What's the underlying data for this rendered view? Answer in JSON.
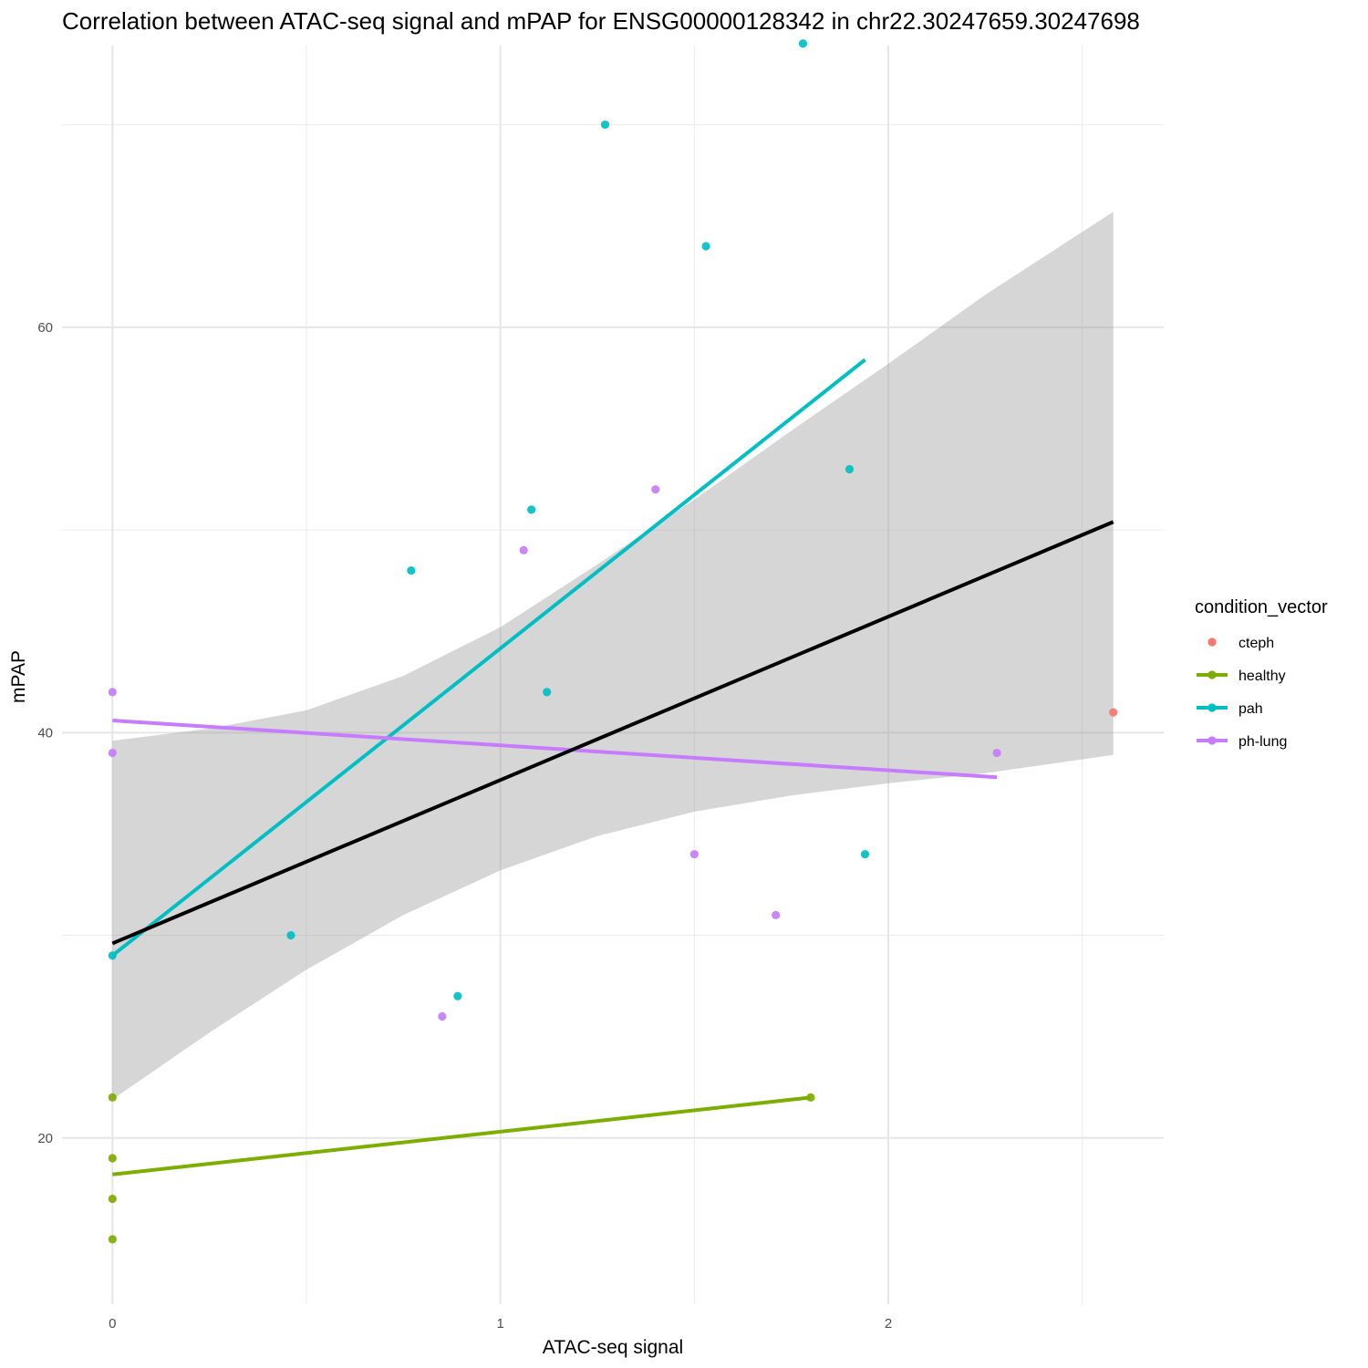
{
  "chart_data": {
    "type": "scatter",
    "title": "Correlation between ATAC-seq signal and mPAP for ENSG00000128342 in chr22.30247659.30247698",
    "xlabel": "ATAC-seq signal",
    "ylabel": "mPAP",
    "xlim": [
      -0.13,
      2.71
    ],
    "ylim": [
      11.8,
      73.9
    ],
    "x_ticks": [
      0,
      1,
      2
    ],
    "x_tick_labels": [
      "0",
      "1",
      "2"
    ],
    "x_minor_grid": [
      0.5,
      1.5,
      2.5
    ],
    "y_ticks": [
      20,
      40,
      60
    ],
    "y_tick_labels": [
      "20",
      "40",
      "60"
    ],
    "y_minor_grid": [
      30,
      50,
      70
    ],
    "grid": true,
    "legend": {
      "title": "condition_vector",
      "placement": "right",
      "entries": [
        {
          "label": "cteph",
          "color": "#F8766D",
          "has_line": false
        },
        {
          "label": "healthy",
          "color": "#7CAE00",
          "has_line": true
        },
        {
          "label": "pah",
          "color": "#00BFC4",
          "has_line": true
        },
        {
          "label": "ph-lung",
          "color": "#C77CFF",
          "has_line": true
        }
      ]
    },
    "series": [
      {
        "name": "cteph",
        "color": "#F8766D",
        "points": [
          [
            2.58,
            41
          ]
        ]
      },
      {
        "name": "healthy",
        "color": "#7CAE00",
        "points": [
          [
            0,
            22
          ],
          [
            0,
            19
          ],
          [
            0,
            17
          ],
          [
            0,
            15
          ],
          [
            1.8,
            22
          ]
        ]
      },
      {
        "name": "pah",
        "color": "#00BFC4",
        "points": [
          [
            1.78,
            74
          ],
          [
            1.27,
            70
          ],
          [
            1.53,
            64
          ],
          [
            1.9,
            53
          ],
          [
            1.08,
            51
          ],
          [
            0.77,
            48
          ],
          [
            1.12,
            42
          ],
          [
            1.94,
            34
          ],
          [
            0.46,
            30
          ],
          [
            0,
            29
          ],
          [
            0.89,
            27
          ]
        ]
      },
      {
        "name": "ph-lung",
        "color": "#C77CFF",
        "points": [
          [
            1.4,
            52
          ],
          [
            1.06,
            49
          ],
          [
            0,
            42
          ],
          [
            0,
            39
          ],
          [
            2.28,
            39
          ],
          [
            1.5,
            34
          ],
          [
            1.71,
            31
          ],
          [
            0.85,
            26
          ]
        ]
      }
    ],
    "fit_lines": [
      {
        "series": "overall",
        "color": "#000000",
        "x": [
          0,
          2.58
        ],
        "y": [
          29.6,
          50.4
        ]
      },
      {
        "series": "healthy",
        "color": "#7CAE00",
        "x": [
          0,
          1.8
        ],
        "y": [
          18.2,
          22
        ]
      },
      {
        "series": "pah",
        "color": "#00BFC4",
        "x": [
          0,
          1.94
        ],
        "y": [
          29,
          58.4
        ]
      },
      {
        "series": "ph-lung",
        "color": "#C77CFF",
        "x": [
          0,
          2.28
        ],
        "y": [
          40.6,
          37.8
        ]
      }
    ],
    "confidence_band": {
      "color": "#999999",
      "x": [
        0,
        0.25,
        0.5,
        0.75,
        1.0,
        1.25,
        1.5,
        1.75,
        2.0,
        2.25,
        2.58
      ],
      "lower": [
        21.9,
        25.2,
        28.3,
        31.0,
        33.2,
        34.9,
        36.1,
        36.9,
        37.5,
        38.0,
        38.9
      ],
      "upper": [
        39.6,
        40.2,
        41.1,
        42.8,
        45.2,
        48.3,
        51.5,
        54.9,
        58.2,
        61.6,
        65.7
      ]
    }
  }
}
